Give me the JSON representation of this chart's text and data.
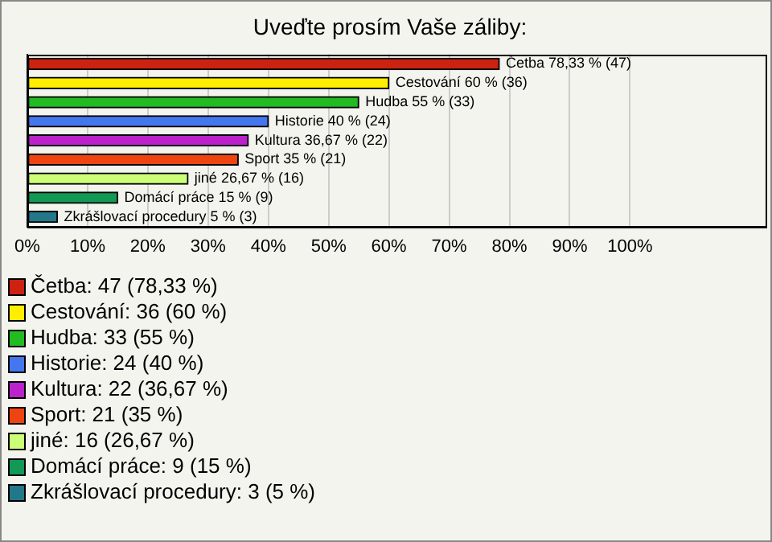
{
  "chart_data": {
    "type": "bar",
    "orientation": "horizontal",
    "stacked": true,
    "title": "Uveďte prosím Vaše záliby:",
    "categories": [
      null,
      null,
      null,
      null,
      null,
      null,
      null,
      null,
      null
    ],
    "series": [
      {
        "name": "Četba: 47 (78,33 %)",
        "color": "#cc2211",
        "values": [
          78.33,
          null,
          null,
          null,
          null,
          null,
          null,
          null,
          null
        ],
        "value_labels": [
          "Četba 78,33 % (47)",
          null,
          null,
          null,
          null,
          null,
          null,
          null,
          null
        ]
      },
      {
        "name": "Cestování: 36 (60 %)",
        "color": "#ffee00",
        "values": [
          null,
          60,
          null,
          null,
          null,
          null,
          null,
          null,
          null
        ],
        "value_labels": [
          null,
          "Cestování 60 % (36)",
          null,
          null,
          null,
          null,
          null,
          null,
          null
        ]
      },
      {
        "name": "Hudba: 33 (55 %)",
        "color": "#22bb22",
        "values": [
          null,
          null,
          55,
          null,
          null,
          null,
          null,
          null,
          null
        ],
        "value_labels": [
          null,
          null,
          "Hudba 55 % (33)",
          null,
          null,
          null,
          null,
          null,
          null
        ]
      },
      {
        "name": "Historie: 24 (40 %)",
        "color": "#4477ee",
        "values": [
          null,
          null,
          null,
          40,
          null,
          null,
          null,
          null,
          null
        ],
        "value_labels": [
          null,
          null,
          null,
          "Historie 40 % (24)",
          null,
          null,
          null,
          null,
          null
        ]
      },
      {
        "name": "Kultura: 22 (36,67 %)",
        "color": "#bb22cc",
        "values": [
          null,
          null,
          null,
          null,
          36.67,
          null,
          null,
          null,
          null
        ],
        "value_labels": [
          null,
          null,
          null,
          null,
          "Kultura 36,67 % (22)",
          null,
          null,
          null,
          null
        ]
      },
      {
        "name": "Sport: 21 (35 %)",
        "color": "#ee4411",
        "values": [
          null,
          null,
          null,
          null,
          null,
          35,
          null,
          null,
          null
        ],
        "value_labels": [
          null,
          null,
          null,
          null,
          null,
          "Sport 35 % (21)",
          null,
          null,
          null
        ]
      },
      {
        "name": "jiné: 16 (26,67 %)",
        "color": "#ccff77",
        "values": [
          null,
          null,
          null,
          null,
          null,
          null,
          26.67,
          null,
          null
        ],
        "value_labels": [
          null,
          null,
          null,
          null,
          null,
          null,
          "jiné 26,67 % (16)",
          null,
          null
        ]
      },
      {
        "name": "Domácí práce: 9 (15 %)",
        "color": "#119955",
        "values": [
          null,
          null,
          null,
          null,
          null,
          null,
          null,
          15,
          null
        ],
        "value_labels": [
          null,
          null,
          null,
          null,
          null,
          null,
          null,
          "Domácí práce 15 % (9)",
          null
        ]
      },
      {
        "name": "Zkrášlovací procedury: 3 (5 %)",
        "color": "#227788",
        "values": [
          null,
          null,
          null,
          null,
          null,
          null,
          null,
          null,
          5
        ],
        "value_labels": [
          null,
          null,
          null,
          null,
          null,
          null,
          null,
          null,
          "Zkrášlovací procedury 5 % (3)"
        ]
      }
    ],
    "xlim": [
      0,
      122.5
    ],
    "xticks": [
      {
        "value": 0,
        "label": "0%"
      },
      {
        "value": 10,
        "label": "10%"
      },
      {
        "value": 20,
        "label": "20%"
      },
      {
        "value": 30,
        "label": "30%"
      },
      {
        "value": 40,
        "label": "40%"
      },
      {
        "value": 50,
        "label": "50%"
      },
      {
        "value": 60,
        "label": "60%"
      },
      {
        "value": 70,
        "label": "70%"
      },
      {
        "value": 80,
        "label": "80%"
      },
      {
        "value": 90,
        "label": "90%"
      },
      {
        "value": 100,
        "label": "100%"
      }
    ],
    "grid": "x",
    "legend": "bottom",
    "tick_labels": "x"
  }
}
